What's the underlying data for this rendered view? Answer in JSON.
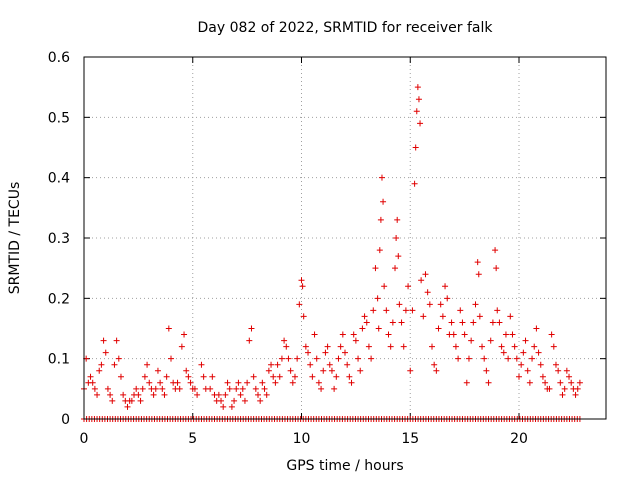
{
  "chart_data": {
    "type": "scatter",
    "title": "Day 082 of 2022, SRMTID for receiver falk",
    "xlabel": "GPS time / hours",
    "ylabel": "SRMTID / TECUs",
    "xlim": [
      0,
      24
    ],
    "ylim": [
      0,
      0.6
    ],
    "xticks": [
      0,
      5,
      10,
      15,
      20
    ],
    "yticks": [
      0,
      0.1,
      0.2,
      0.3,
      0.4,
      0.5,
      0.6
    ],
    "xtick_labels": [
      "0",
      "5",
      "10",
      "15",
      "20"
    ],
    "ytick_labels": [
      "0",
      "0.1",
      "0.2",
      "0.3",
      "0.4",
      "0.5",
      "0.6"
    ],
    "grid": true,
    "marker": "+",
    "series_color": "#e00000",
    "series": [
      {
        "name": "SRMTID",
        "points": [
          [
            0.0,
            0.05
          ],
          [
            0.1,
            0.1
          ],
          [
            0.2,
            0.06
          ],
          [
            0.3,
            0.07
          ],
          [
            0.4,
            0.06
          ],
          [
            0.5,
            0.05
          ],
          [
            0.6,
            0.04
          ],
          [
            0.7,
            0.08
          ],
          [
            0.8,
            0.09
          ],
          [
            0.9,
            0.13
          ],
          [
            1.0,
            0.11
          ],
          [
            1.1,
            0.05
          ],
          [
            1.2,
            0.04
          ],
          [
            1.3,
            0.03
          ],
          [
            1.4,
            0.09
          ],
          [
            1.5,
            0.13
          ],
          [
            1.6,
            0.1
          ],
          [
            1.7,
            0.07
          ],
          [
            1.8,
            0.04
          ],
          [
            1.9,
            0.03
          ],
          [
            2.0,
            0.02
          ],
          [
            2.1,
            0.03
          ],
          [
            2.2,
            0.03
          ],
          [
            2.3,
            0.04
          ],
          [
            2.4,
            0.05
          ],
          [
            2.5,
            0.04
          ],
          [
            2.6,
            0.03
          ],
          [
            2.7,
            0.05
          ],
          [
            2.8,
            0.07
          ],
          [
            2.9,
            0.09
          ],
          [
            3.0,
            0.06
          ],
          [
            3.1,
            0.05
          ],
          [
            3.2,
            0.04
          ],
          [
            3.3,
            0.05
          ],
          [
            3.4,
            0.08
          ],
          [
            3.5,
            0.06
          ],
          [
            3.6,
            0.05
          ],
          [
            3.7,
            0.04
          ],
          [
            3.8,
            0.07
          ],
          [
            3.9,
            0.15
          ],
          [
            4.0,
            0.1
          ],
          [
            4.1,
            0.06
          ],
          [
            4.2,
            0.05
          ],
          [
            4.3,
            0.06
          ],
          [
            4.4,
            0.05
          ],
          [
            4.5,
            0.12
          ],
          [
            4.6,
            0.14
          ],
          [
            4.7,
            0.08
          ],
          [
            4.8,
            0.07
          ],
          [
            4.9,
            0.06
          ],
          [
            5.0,
            0.05
          ],
          [
            5.1,
            0.05
          ],
          [
            5.2,
            0.04
          ],
          [
            5.4,
            0.09
          ],
          [
            5.5,
            0.07
          ],
          [
            5.6,
            0.05
          ],
          [
            5.8,
            0.05
          ],
          [
            5.9,
            0.07
          ],
          [
            6.0,
            0.04
          ],
          [
            6.1,
            0.03
          ],
          [
            6.2,
            0.04
          ],
          [
            6.3,
            0.03
          ],
          [
            6.4,
            0.02
          ],
          [
            6.5,
            0.04
          ],
          [
            6.6,
            0.06
          ],
          [
            6.7,
            0.05
          ],
          [
            6.8,
            0.02
          ],
          [
            6.9,
            0.03
          ],
          [
            7.0,
            0.05
          ],
          [
            7.1,
            0.06
          ],
          [
            7.2,
            0.04
          ],
          [
            7.3,
            0.05
          ],
          [
            7.4,
            0.03
          ],
          [
            7.5,
            0.06
          ],
          [
            7.6,
            0.13
          ],
          [
            7.7,
            0.15
          ],
          [
            7.8,
            0.07
          ],
          [
            7.9,
            0.05
          ],
          [
            8.0,
            0.04
          ],
          [
            8.1,
            0.03
          ],
          [
            8.2,
            0.06
          ],
          [
            8.3,
            0.05
          ],
          [
            8.4,
            0.04
          ],
          [
            8.5,
            0.08
          ],
          [
            8.6,
            0.09
          ],
          [
            8.7,
            0.07
          ],
          [
            8.8,
            0.06
          ],
          [
            8.9,
            0.09
          ],
          [
            9.0,
            0.07
          ],
          [
            9.1,
            0.1
          ],
          [
            9.2,
            0.13
          ],
          [
            9.3,
            0.12
          ],
          [
            9.4,
            0.1
          ],
          [
            9.5,
            0.08
          ],
          [
            9.6,
            0.06
          ],
          [
            9.7,
            0.07
          ],
          [
            9.8,
            0.1
          ],
          [
            9.9,
            0.19
          ],
          [
            10.0,
            0.23
          ],
          [
            10.05,
            0.22
          ],
          [
            10.1,
            0.17
          ],
          [
            10.2,
            0.12
          ],
          [
            10.3,
            0.11
          ],
          [
            10.4,
            0.09
          ],
          [
            10.5,
            0.07
          ],
          [
            10.6,
            0.14
          ],
          [
            10.7,
            0.1
          ],
          [
            10.8,
            0.06
          ],
          [
            10.9,
            0.05
          ],
          [
            11.0,
            0.08
          ],
          [
            11.1,
            0.11
          ],
          [
            11.2,
            0.12
          ],
          [
            11.3,
            0.09
          ],
          [
            11.4,
            0.08
          ],
          [
            11.5,
            0.05
          ],
          [
            11.6,
            0.07
          ],
          [
            11.7,
            0.1
          ],
          [
            11.8,
            0.12
          ],
          [
            11.9,
            0.14
          ],
          [
            12.0,
            0.11
          ],
          [
            12.1,
            0.09
          ],
          [
            12.2,
            0.07
          ],
          [
            12.3,
            0.06
          ],
          [
            12.4,
            0.14
          ],
          [
            12.5,
            0.13
          ],
          [
            12.6,
            0.1
          ],
          [
            12.7,
            0.08
          ],
          [
            12.8,
            0.15
          ],
          [
            12.9,
            0.17
          ],
          [
            13.0,
            0.16
          ],
          [
            13.1,
            0.12
          ],
          [
            13.2,
            0.1
          ],
          [
            13.3,
            0.18
          ],
          [
            13.4,
            0.25
          ],
          [
            13.5,
            0.2
          ],
          [
            13.55,
            0.15
          ],
          [
            13.6,
            0.28
          ],
          [
            13.65,
            0.33
          ],
          [
            13.7,
            0.4
          ],
          [
            13.75,
            0.36
          ],
          [
            13.8,
            0.22
          ],
          [
            13.9,
            0.18
          ],
          [
            14.0,
            0.14
          ],
          [
            14.1,
            0.12
          ],
          [
            14.2,
            0.16
          ],
          [
            14.3,
            0.25
          ],
          [
            14.35,
            0.3
          ],
          [
            14.4,
            0.33
          ],
          [
            14.45,
            0.27
          ],
          [
            14.5,
            0.19
          ],
          [
            14.6,
            0.16
          ],
          [
            14.7,
            0.12
          ],
          [
            14.8,
            0.18
          ],
          [
            14.9,
            0.22
          ],
          [
            15.0,
            0.08
          ],
          [
            15.1,
            0.18
          ],
          [
            15.2,
            0.39
          ],
          [
            15.25,
            0.45
          ],
          [
            15.3,
            0.51
          ],
          [
            15.35,
            0.55
          ],
          [
            15.4,
            0.53
          ],
          [
            15.45,
            0.49
          ],
          [
            15.5,
            0.23
          ],
          [
            15.6,
            0.17
          ],
          [
            15.7,
            0.24
          ],
          [
            15.8,
            0.21
          ],
          [
            15.9,
            0.19
          ],
          [
            16.0,
            0.12
          ],
          [
            16.1,
            0.09
          ],
          [
            16.2,
            0.08
          ],
          [
            16.3,
            0.15
          ],
          [
            16.4,
            0.19
          ],
          [
            16.5,
            0.17
          ],
          [
            16.6,
            0.22
          ],
          [
            16.7,
            0.2
          ],
          [
            16.8,
            0.14
          ],
          [
            16.9,
            0.16
          ],
          [
            17.0,
            0.14
          ],
          [
            17.1,
            0.12
          ],
          [
            17.2,
            0.1
          ],
          [
            17.3,
            0.18
          ],
          [
            17.4,
            0.16
          ],
          [
            17.5,
            0.14
          ],
          [
            17.6,
            0.06
          ],
          [
            17.7,
            0.1
          ],
          [
            17.8,
            0.13
          ],
          [
            17.9,
            0.16
          ],
          [
            18.0,
            0.19
          ],
          [
            18.1,
            0.26
          ],
          [
            18.15,
            0.24
          ],
          [
            18.2,
            0.17
          ],
          [
            18.3,
            0.12
          ],
          [
            18.4,
            0.1
          ],
          [
            18.5,
            0.08
          ],
          [
            18.6,
            0.06
          ],
          [
            18.7,
            0.13
          ],
          [
            18.8,
            0.16
          ],
          [
            18.9,
            0.28
          ],
          [
            18.95,
            0.25
          ],
          [
            19.0,
            0.18
          ],
          [
            19.1,
            0.16
          ],
          [
            19.2,
            0.12
          ],
          [
            19.3,
            0.11
          ],
          [
            19.4,
            0.14
          ],
          [
            19.5,
            0.1
          ],
          [
            19.6,
            0.17
          ],
          [
            19.7,
            0.14
          ],
          [
            19.8,
            0.12
          ],
          [
            19.9,
            0.1
          ],
          [
            20.0,
            0.07
          ],
          [
            20.1,
            0.09
          ],
          [
            20.2,
            0.11
          ],
          [
            20.3,
            0.13
          ],
          [
            20.4,
            0.08
          ],
          [
            20.5,
            0.06
          ],
          [
            20.6,
            0.1
          ],
          [
            20.7,
            0.12
          ],
          [
            20.8,
            0.15
          ],
          [
            20.9,
            0.11
          ],
          [
            21.0,
            0.09
          ],
          [
            21.1,
            0.07
          ],
          [
            21.2,
            0.06
          ],
          [
            21.3,
            0.05
          ],
          [
            21.4,
            0.05
          ],
          [
            21.5,
            0.14
          ],
          [
            21.6,
            0.12
          ],
          [
            21.7,
            0.09
          ],
          [
            21.8,
            0.08
          ],
          [
            21.9,
            0.06
          ],
          [
            22.0,
            0.04
          ],
          [
            22.1,
            0.05
          ],
          [
            22.2,
            0.08
          ],
          [
            22.3,
            0.07
          ],
          [
            22.4,
            0.06
          ],
          [
            22.5,
            0.05
          ],
          [
            22.6,
            0.04
          ],
          [
            22.7,
            0.05
          ],
          [
            22.8,
            0.06
          ]
        ]
      }
    ],
    "baseline": {
      "y": 0,
      "x_start": 0,
      "x_end": 22.8,
      "x_step": 0.12
    }
  }
}
